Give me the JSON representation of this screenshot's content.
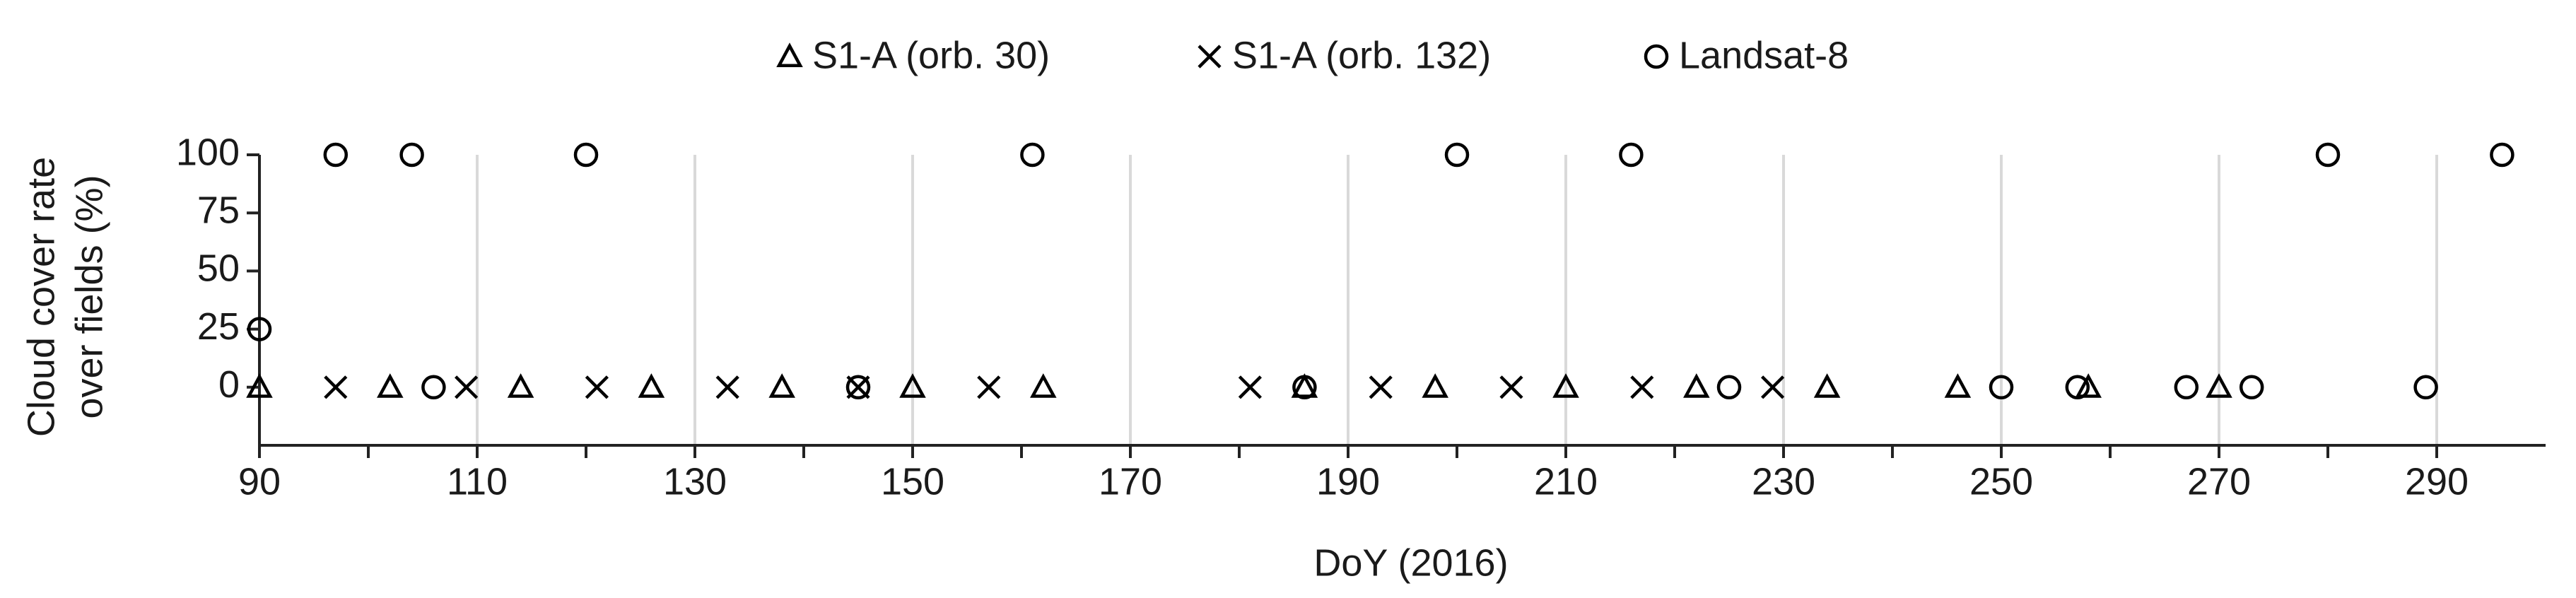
{
  "chart_data": {
    "type": "scatter",
    "xlabel": "DoY (2016)",
    "ylabel": [
      "Cloud cover rate",
      "over fields (%)"
    ],
    "xlim": [
      90,
      300
    ],
    "xticks": [
      90,
      110,
      130,
      150,
      170,
      190,
      210,
      230,
      250,
      270,
      290
    ],
    "ylim": [
      -25,
      100
    ],
    "yticks": [
      0,
      25,
      50,
      75,
      100
    ],
    "grid": "x",
    "legend": "top",
    "series": [
      {
        "name": "S1-A (orb. 30)",
        "color": "#000000",
        "marker": "triangle",
        "x": [
          90,
          102,
          114,
          126,
          138,
          150,
          162,
          186,
          198,
          210,
          222,
          234,
          246,
          258,
          270
        ],
        "values": [
          0,
          0,
          0,
          0,
          0,
          0,
          0,
          0,
          0,
          0,
          0,
          0,
          0,
          0,
          0
        ]
      },
      {
        "name": "S1-A (orb. 132)",
        "color": "#000000",
        "marker": "x",
        "x": [
          97,
          109,
          121,
          133,
          145,
          157,
          181,
          193,
          205,
          217,
          229
        ],
        "values": [
          0,
          0,
          0,
          0,
          0,
          0,
          0,
          0,
          0,
          0,
          0
        ]
      },
      {
        "name": "Landsat-8",
        "color": "#000000",
        "marker": "circle",
        "x": [
          90,
          97,
          104,
          106,
          120,
          145,
          161,
          186,
          200,
          216,
          225,
          250,
          257,
          267,
          273,
          280,
          289,
          296
        ],
        "values": [
          25,
          100,
          100,
          0,
          100,
          0,
          100,
          0,
          100,
          100,
          0,
          0,
          0,
          0,
          0,
          100,
          0,
          100
        ]
      }
    ]
  }
}
